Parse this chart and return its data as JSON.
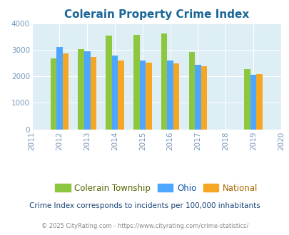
{
  "title": "Colerain Property Crime Index",
  "years": [
    2011,
    2012,
    2013,
    2014,
    2015,
    2016,
    2017,
    2018,
    2019,
    2020
  ],
  "data_years": [
    2012,
    2013,
    2014,
    2015,
    2016,
    2017,
    2019
  ],
  "colerain": [
    2670,
    3040,
    3540,
    3560,
    3620,
    2920,
    2270
  ],
  "ohio": [
    3100,
    2950,
    2800,
    2600,
    2590,
    2440,
    2060
  ],
  "national": [
    2870,
    2730,
    2610,
    2520,
    2480,
    2390,
    2100
  ],
  "color_colerain": "#8dc63f",
  "color_ohio": "#4da6ff",
  "color_national": "#f5a623",
  "bg_color": "#ddeef4",
  "ylim": [
    0,
    4000
  ],
  "yticks": [
    0,
    1000,
    2000,
    3000,
    4000
  ],
  "tick_color": "#7799bb",
  "title_color": "#1a6699",
  "legend_labels": [
    "Colerain Township",
    "Ohio",
    "National"
  ],
  "legend_text_colors": [
    "#556600",
    "#1155aa",
    "#aa6600"
  ],
  "footnote1": "Crime Index corresponds to incidents per 100,000 inhabitants",
  "footnote2": "© 2025 CityRating.com - https://www.cityrating.com/crime-statistics/",
  "bar_width": 0.22
}
